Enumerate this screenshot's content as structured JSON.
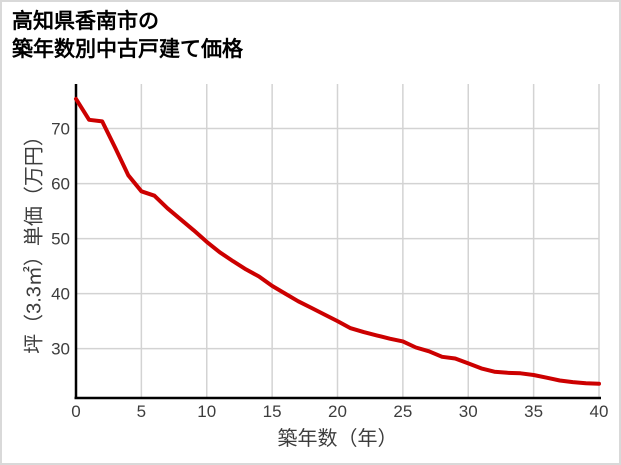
{
  "frame": {
    "background": "#ffffff",
    "border_color": "#d9d9d9"
  },
  "title": {
    "line1": "高知県香南市の",
    "line2": "築年数別中古戸建て価格"
  },
  "chart_data": {
    "type": "line",
    "title": "高知県香南市の築年数別中古戸建て価格",
    "xlabel": "築年数（年）",
    "ylabel": "坪（3.3㎡）単価（万円）",
    "x": [
      0,
      1,
      2,
      3,
      4,
      5,
      6,
      7,
      8,
      9,
      10,
      11,
      12,
      13,
      14,
      15,
      16,
      17,
      18,
      19,
      20,
      21,
      22,
      23,
      24,
      25,
      26,
      27,
      28,
      29,
      30,
      31,
      32,
      33,
      34,
      35,
      36,
      37,
      38,
      39,
      40
    ],
    "y": [
      75.4,
      71.6,
      71.3,
      66.5,
      61.5,
      58.6,
      57.8,
      55.5,
      53.5,
      51.5,
      49.4,
      47.5,
      45.9,
      44.4,
      43.1,
      41.4,
      40.0,
      38.6,
      37.4,
      36.2,
      35.0,
      33.7,
      33.0,
      32.4,
      31.8,
      31.3,
      30.2,
      29.5,
      28.5,
      28.2,
      27.3,
      26.4,
      25.8,
      25.6,
      25.5,
      25.2,
      24.7,
      24.2,
      23.9,
      23.7,
      23.6
    ],
    "xlim": [
      0,
      40
    ],
    "ylim": [
      21.2,
      78.1
    ],
    "xticks": [
      0,
      5,
      10,
      15,
      20,
      25,
      30,
      35,
      40
    ],
    "yticks": [
      30,
      40,
      50,
      60,
      70
    ],
    "grid": true,
    "legend": false,
    "line_color": "#cc0000",
    "line_width": 4,
    "grid_color": "#d3d3d3",
    "axis_color": "#000000",
    "tick_color": "#3d3d3d"
  }
}
